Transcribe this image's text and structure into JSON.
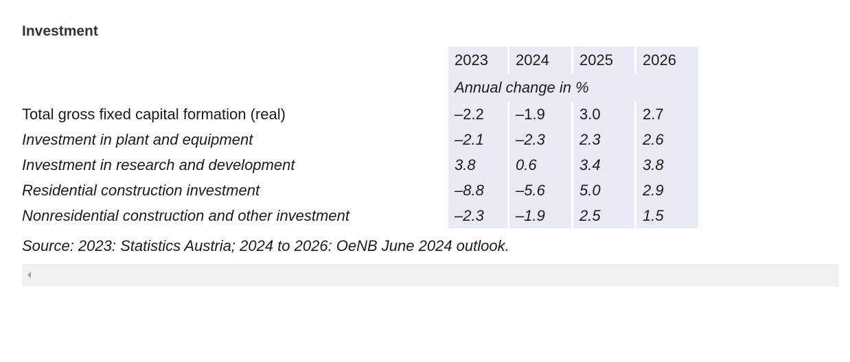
{
  "title": "Investment",
  "table": {
    "years": [
      "2023",
      "2024",
      "2025",
      "2026"
    ],
    "unit": "Annual change in %",
    "rows": [
      {
        "label": "Total gross fixed capital formation (real)",
        "italic": false,
        "values": [
          "–2.2",
          "–1.9",
          "3.0",
          "2.7"
        ]
      },
      {
        "label": "Investment in plant and equipment",
        "italic": true,
        "values": [
          "–2.1",
          "–2.3",
          "2.3",
          "2.6"
        ]
      },
      {
        "label": "Investment in research and development",
        "italic": true,
        "values": [
          "3.8",
          "0.6",
          "3.4",
          "3.8"
        ]
      },
      {
        "label": "Residential construction investment",
        "italic": true,
        "values": [
          "–8.8",
          "–5.6",
          "5.0",
          "2.9"
        ]
      },
      {
        "label": "Nonresidential construction and other investment",
        "italic": true,
        "values": [
          "–2.3",
          "–1.9",
          "2.5",
          "1.5"
        ]
      }
    ]
  },
  "source": "Source: 2023: Statistics Austria; 2024 to 2026: OeNB June 2024 outlook.",
  "scrollbar": {
    "left_arrow_icon": "triangle-left-icon"
  }
}
